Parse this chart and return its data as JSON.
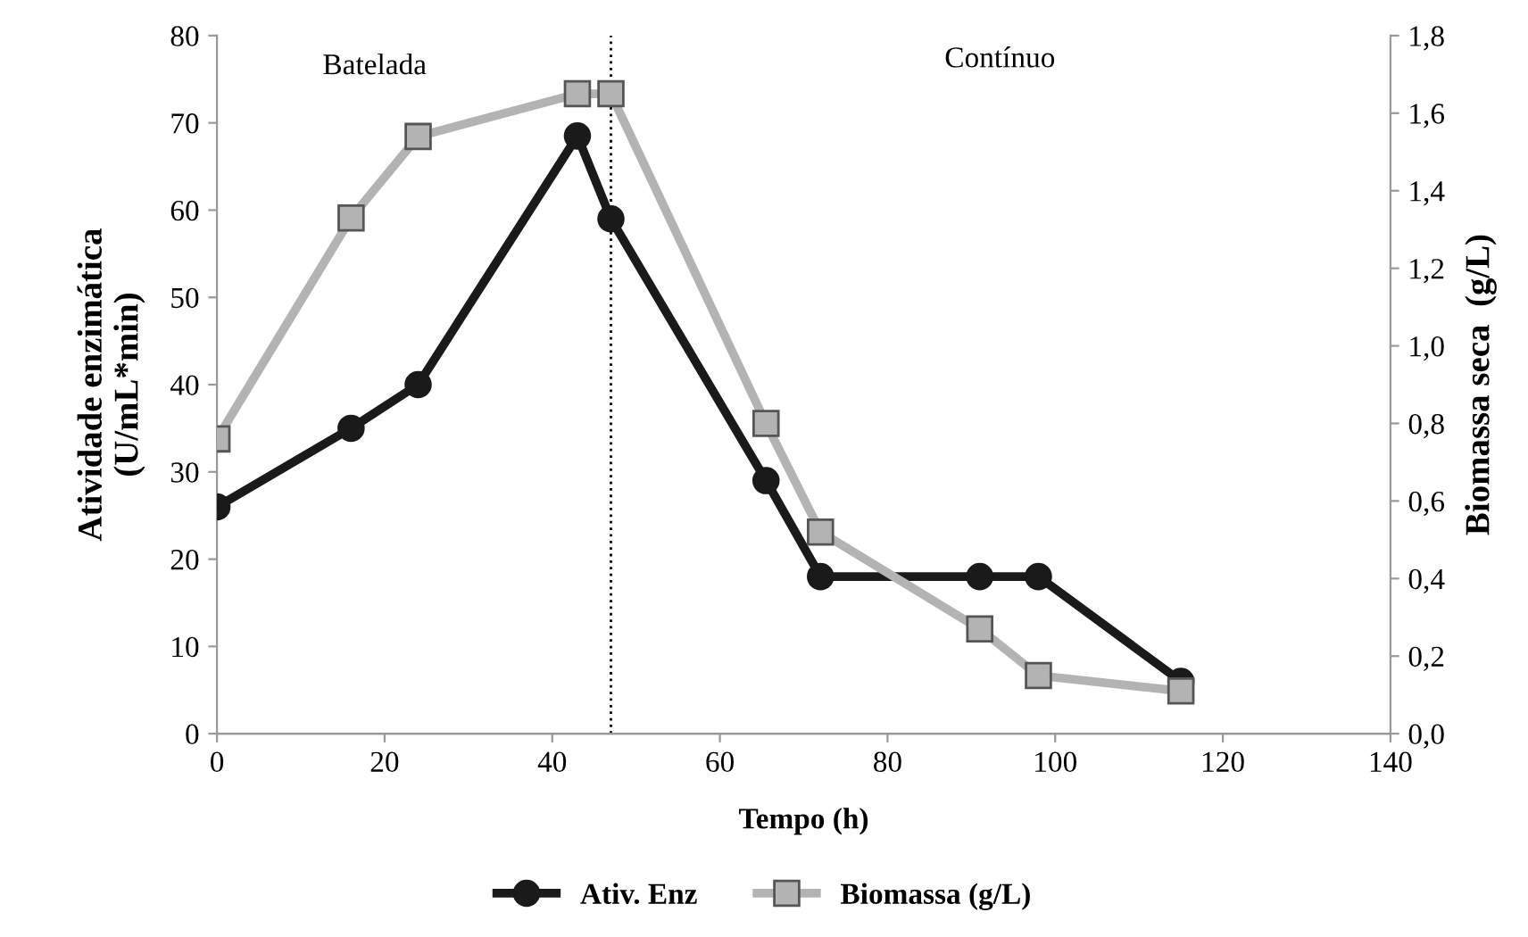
{
  "chart_data": {
    "type": "line",
    "xlabel": "Tempo (h)",
    "ylabel": "Atividade enzimática\n(U/mL*min)",
    "y2label": "Biomassa seca  (g/L)",
    "x": [
      0,
      16,
      24,
      43,
      47,
      65.5,
      72,
      91,
      98,
      115
    ],
    "series": [
      {
        "name": "Ativ. Enz",
        "color": "#1a1a1a",
        "marker": "circle",
        "values": [
          26,
          35,
          40,
          68.5,
          59,
          29,
          18,
          18,
          18,
          6
        ]
      },
      {
        "name": "Biomassa (g/L)",
        "color": "#b3b3b3",
        "marker": "square",
        "axis": "y2",
        "values": [
          0.76,
          1.33,
          1.54,
          1.65,
          1.65,
          0.8,
          0.52,
          0.27,
          0.15,
          0.11
        ]
      }
    ],
    "xlim": [
      0,
      140
    ],
    "xticks": [
      0,
      20,
      40,
      60,
      80,
      100,
      120,
      140
    ],
    "ylim": [
      0,
      80
    ],
    "yticks": [
      0,
      10,
      20,
      30,
      40,
      50,
      60,
      70,
      80
    ],
    "y2lim": [
      0,
      1.8
    ],
    "y2ticks": [
      {
        "value": 0,
        "label": "0,0"
      },
      {
        "value": 0.2,
        "label": "0,2"
      },
      {
        "value": 0.4,
        "label": "0,4"
      },
      {
        "value": 0.6,
        "label": "0,6"
      },
      {
        "value": 0.8,
        "label": "0,8"
      },
      {
        "value": 1.0,
        "label": "1,0"
      },
      {
        "value": 1.2,
        "label": "1,2"
      },
      {
        "value": 1.4,
        "label": "1,4"
      },
      {
        "value": 1.6,
        "label": "1,6"
      },
      {
        "value": 1.8,
        "label": "1,8"
      }
    ],
    "ref_lines": [
      {
        "axis": "x",
        "value": 47,
        "line_style": "dotted",
        "color": "#000000"
      }
    ],
    "annotations": [
      "Batelada",
      "Contínuo"
    ],
    "grid": false,
    "legend": "bottom",
    "line_style": "solid"
  }
}
